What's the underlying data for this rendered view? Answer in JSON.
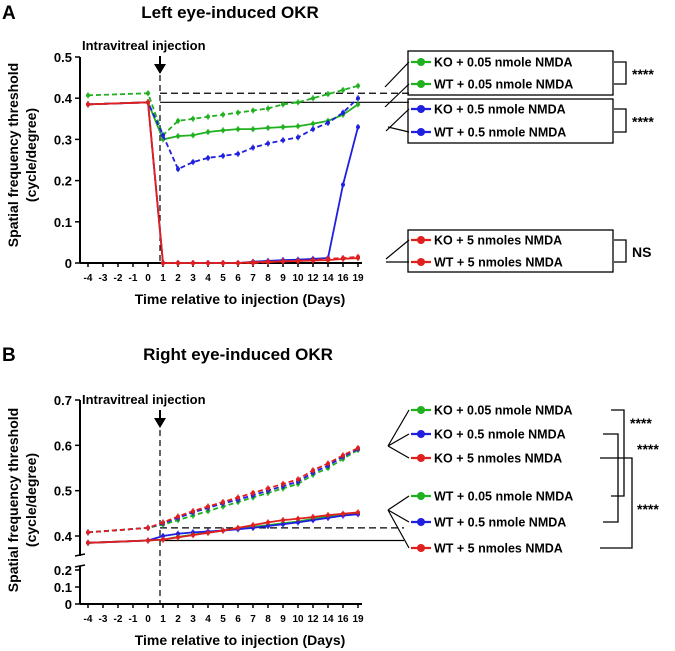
{
  "colors": {
    "KO_0.05": "#20b020",
    "WT_0.05": "#20b020",
    "KO_0.5": "#1f1fe0",
    "WT_0.5": "#1f1fe0",
    "KO_5": "#e0201f",
    "WT_5": "#e0201f",
    "ref_line": "#000000"
  },
  "chart_data": [
    {
      "panel": "A",
      "type": "line",
      "title": "Left eye-induced OKR",
      "xlabel": "Time relative to injection (Days)",
      "ylabel_line1": "Spatial frequency threshold",
      "ylabel_line2": "(cycle/degree)",
      "annotation": "Intravitreal injection",
      "x_ticks": [
        "-4",
        "-3",
        "-2",
        "-1",
        "0",
        "1",
        "2",
        "3",
        "4",
        "5",
        "6",
        "7",
        "8",
        "9",
        "10",
        "12",
        "14",
        "16",
        "19"
      ],
      "y_ticks": [
        "0",
        "0.1",
        "0.2",
        "0.3",
        "0.4",
        "0.5"
      ],
      "ylim": [
        0,
        0.5
      ],
      "grid": false,
      "series": [
        {
          "name": "KO + 0.05 nmole NMDA",
          "style": "dashed",
          "color_key": "KO_0.05",
          "x": [
            "-4",
            "0",
            "1",
            "2",
            "3",
            "4",
            "5",
            "6",
            "7",
            "8",
            "9",
            "10",
            "12",
            "14",
            "16",
            "19"
          ],
          "values": [
            0.407,
            0.412,
            0.31,
            0.345,
            0.35,
            0.355,
            0.36,
            0.365,
            0.37,
            0.375,
            0.385,
            0.39,
            0.4,
            0.41,
            0.42,
            0.43
          ]
        },
        {
          "name": "WT + 0.05 nmole NMDA",
          "style": "solid",
          "color_key": "WT_0.05",
          "x": [
            "-4",
            "0",
            "1",
            "2",
            "3",
            "4",
            "5",
            "6",
            "7",
            "8",
            "9",
            "10",
            "12",
            "14",
            "16",
            "19"
          ],
          "values": [
            0.385,
            0.39,
            0.3,
            0.308,
            0.31,
            0.318,
            0.322,
            0.325,
            0.325,
            0.328,
            0.33,
            0.332,
            0.338,
            0.345,
            0.36,
            0.385
          ]
        },
        {
          "name": "KO + 0.5 nmole NMDA",
          "style": "dashed",
          "color_key": "KO_0.5",
          "x": [
            "-4",
            "0",
            "1",
            "2",
            "3",
            "4",
            "5",
            "6",
            "7",
            "8",
            "9",
            "10",
            "12",
            "14",
            "16",
            "19"
          ],
          "values": [
            0.385,
            0.39,
            0.31,
            0.228,
            0.245,
            0.255,
            0.26,
            0.265,
            0.28,
            0.29,
            0.298,
            0.305,
            0.325,
            0.34,
            0.365,
            0.4
          ]
        },
        {
          "name": "WT + 0.5 nmole NMDA",
          "style": "solid",
          "color_key": "WT_0.5",
          "x": [
            "-4",
            "0",
            "1",
            "2",
            "3",
            "4",
            "5",
            "6",
            "7",
            "8",
            "9",
            "10",
            "12",
            "14",
            "16",
            "19"
          ],
          "values": [
            0.385,
            0.39,
            0.0,
            0.0,
            0.0,
            0.0,
            0.0,
            0.0,
            0.003,
            0.005,
            0.007,
            0.008,
            0.01,
            0.012,
            0.19,
            0.33
          ]
        },
        {
          "name": "KO + 5 nmoles NMDA",
          "style": "dashed",
          "color_key": "KO_5",
          "x": [
            "-4",
            "0",
            "1",
            "2",
            "3",
            "4",
            "5",
            "6",
            "7",
            "8",
            "9",
            "10",
            "12",
            "14",
            "16",
            "19"
          ],
          "values": [
            0.385,
            0.39,
            0.0,
            0.0,
            0.0,
            0.0,
            0.0,
            0.0,
            0.0,
            0.002,
            0.004,
            0.005,
            0.007,
            0.01,
            0.012,
            0.015
          ]
        },
        {
          "name": "WT + 5 nmoles NMDA",
          "style": "solid",
          "color_key": "WT_5",
          "x": [
            "-4",
            "0",
            "1",
            "2",
            "3",
            "4",
            "5",
            "6",
            "7",
            "8",
            "9",
            "10",
            "12",
            "14",
            "16",
            "19"
          ],
          "values": [
            0.385,
            0.39,
            0.0,
            0.0,
            0.0,
            0.0,
            0.0,
            0.0,
            0.002,
            0.003,
            0.004,
            0.005,
            0.006,
            0.007,
            0.01,
            0.012
          ]
        }
      ],
      "reference_lines": [
        {
          "style": "dashed",
          "y": 0.412
        },
        {
          "style": "solid",
          "y": 0.39
        }
      ],
      "legend": [
        {
          "label": "KO + 0.05 nmole NMDA",
          "series": 0
        },
        {
          "label": "WT + 0.05 nmole NMDA",
          "series": 1
        },
        {
          "label": "KO + 0.5 nmole NMDA",
          "series": 2
        },
        {
          "label": "WT + 0.5 nmole NMDA",
          "series": 3
        },
        {
          "label": "KO + 5 nmoles NMDA",
          "series": 4
        },
        {
          "label": "WT + 5 nmoles NMDA",
          "series": 5
        }
      ],
      "significance": [
        {
          "from": 0,
          "to": 1,
          "label": "****"
        },
        {
          "from": 2,
          "to": 3,
          "label": "****"
        },
        {
          "from": 4,
          "to": 5,
          "label": "NS"
        }
      ]
    },
    {
      "panel": "B",
      "type": "line",
      "title": "Right eye-induced OKR",
      "xlabel": "Time relative to injection (Days)",
      "ylabel_line1": "Spatial frequency threshold",
      "ylabel_line2": "(cycle/degree)",
      "annotation": "Intravitreal injection",
      "x_ticks": [
        "-4",
        "-3",
        "-2",
        "-1",
        "0",
        "1",
        "2",
        "3",
        "4",
        "5",
        "6",
        "7",
        "8",
        "9",
        "10",
        "12",
        "14",
        "16",
        "19"
      ],
      "y_ticks_upper": [
        "0.4",
        "0.5",
        "0.6",
        "0.7"
      ],
      "y_ticks_lower": [
        "0",
        "0.1",
        "0.2"
      ],
      "ylim_upper": [
        0.37,
        0.7
      ],
      "ylim_lower": [
        0,
        0.25
      ],
      "grid": false,
      "series": [
        {
          "name": "KO + 0.05 nmole NMDA",
          "style": "dashed",
          "color_key": "KO_0.05",
          "x": [
            "-4",
            "0",
            "1",
            "2",
            "3",
            "4",
            "5",
            "6",
            "7",
            "8",
            "9",
            "10",
            "12",
            "14",
            "16",
            "19"
          ],
          "values": [
            0.408,
            0.418,
            0.425,
            0.435,
            0.445,
            0.455,
            0.465,
            0.475,
            0.485,
            0.495,
            0.505,
            0.515,
            0.535,
            0.55,
            0.57,
            0.59
          ]
        },
        {
          "name": "KO + 0.5 nmole NMDA",
          "style": "dashed",
          "color_key": "KO_0.5",
          "x": [
            "-4",
            "0",
            "1",
            "2",
            "3",
            "4",
            "5",
            "6",
            "7",
            "8",
            "9",
            "10",
            "12",
            "14",
            "16",
            "19"
          ],
          "values": [
            0.408,
            0.418,
            0.428,
            0.44,
            0.452,
            0.462,
            0.472,
            0.48,
            0.49,
            0.5,
            0.51,
            0.52,
            0.54,
            0.555,
            0.575,
            0.592
          ]
        },
        {
          "name": "KO + 5 nmoles NMDA",
          "style": "dashed",
          "color_key": "KO_5",
          "x": [
            "-4",
            "0",
            "1",
            "2",
            "3",
            "4",
            "5",
            "6",
            "7",
            "8",
            "9",
            "10",
            "12",
            "14",
            "16",
            "19"
          ],
          "values": [
            0.408,
            0.418,
            0.43,
            0.443,
            0.455,
            0.465,
            0.475,
            0.485,
            0.495,
            0.505,
            0.515,
            0.525,
            0.545,
            0.56,
            0.578,
            0.594
          ]
        },
        {
          "name": "WT + 0.05 nmole NMDA",
          "style": "solid",
          "color_key": "WT_0.05",
          "x": [
            "-4",
            "0",
            "1",
            "2",
            "3",
            "4",
            "5",
            "6",
            "7",
            "8",
            "9",
            "10",
            "12",
            "14",
            "16",
            "19"
          ],
          "values": [
            0.385,
            0.39,
            0.392,
            0.398,
            0.403,
            0.408,
            0.412,
            0.416,
            0.42,
            0.424,
            0.428,
            0.432,
            0.438,
            0.443,
            0.447,
            0.45
          ]
        },
        {
          "name": "WT + 0.5 nmole NMDA",
          "style": "solid",
          "color_key": "WT_0.5",
          "x": [
            "-4",
            "0",
            "1",
            "2",
            "3",
            "4",
            "5",
            "6",
            "7",
            "8",
            "9",
            "10",
            "12",
            "14",
            "16",
            "19"
          ],
          "values": [
            0.385,
            0.39,
            0.4,
            0.405,
            0.408,
            0.41,
            0.412,
            0.415,
            0.418,
            0.422,
            0.426,
            0.43,
            0.435,
            0.44,
            0.445,
            0.448
          ]
        },
        {
          "name": "WT + 5 nmoles NMDA",
          "style": "solid",
          "color_key": "WT_5",
          "x": [
            "-4",
            "0",
            "1",
            "2",
            "3",
            "4",
            "5",
            "6",
            "7",
            "8",
            "9",
            "10",
            "12",
            "14",
            "16",
            "19"
          ],
          "values": [
            0.385,
            0.39,
            0.392,
            0.397,
            0.402,
            0.407,
            0.412,
            0.418,
            0.424,
            0.43,
            0.435,
            0.438,
            0.442,
            0.446,
            0.449,
            0.452
          ]
        }
      ],
      "reference_lines": [
        {
          "style": "dashed",
          "y": 0.418
        },
        {
          "style": "solid",
          "y": 0.39
        }
      ],
      "legend": [
        {
          "label": "KO + 0.05 nmole NMDA",
          "series": 0
        },
        {
          "label": "KO + 0.5 nmole NMDA",
          "series": 1
        },
        {
          "label": "KO + 5 nmoles NMDA",
          "series": 2
        },
        {
          "label": "WT + 0.05 nmole NMDA",
          "series": 3
        },
        {
          "label": "WT + 0.5 nmole NMDA",
          "series": 4
        },
        {
          "label": "WT + 5 nmoles NMDA",
          "series": 5
        }
      ],
      "significance": [
        {
          "from": 0,
          "to": 3,
          "label": "****"
        },
        {
          "from": 1,
          "to": 4,
          "label": "****"
        },
        {
          "from": 2,
          "to": 5,
          "label": "****"
        }
      ]
    }
  ]
}
